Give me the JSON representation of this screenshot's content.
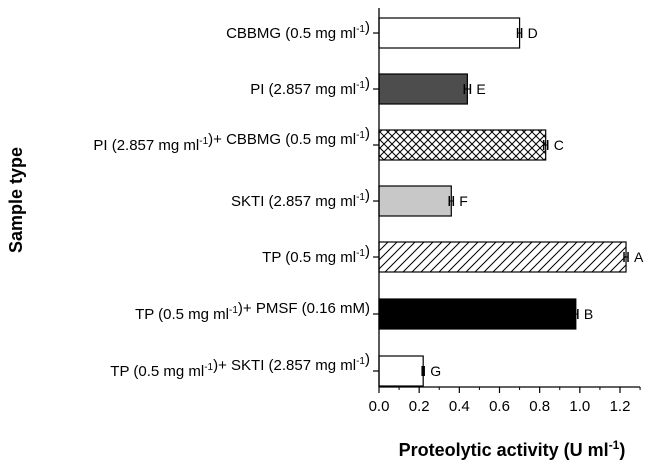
{
  "chart_data": {
    "type": "bar",
    "orientation": "horizontal",
    "xlabel": {
      "text": "Proteolytic activity (U ml",
      "sup": "-1",
      "close": ")"
    },
    "ylabel": "Sample type",
    "xlim": [
      0,
      1.3
    ],
    "xticks": [
      "0.0",
      "0.2",
      "0.4",
      "0.6",
      "0.8",
      "1.0",
      "1.2"
    ],
    "grid": false,
    "categories": [
      {
        "parts": [
          {
            "t": "CBBMG (0.5 mg ml"
          },
          {
            "sup": "-1"
          },
          {
            "t": ")"
          }
        ],
        "value": 0.7,
        "error": 0.01,
        "letter": "D",
        "fill": "white"
      },
      {
        "parts": [
          {
            "t": "PI (2.857 mg ml"
          },
          {
            "sup": "-1"
          },
          {
            "t": ")"
          }
        ],
        "value": 0.44,
        "error": 0.015,
        "letter": "E",
        "fill": "darkgray"
      },
      {
        "parts": [
          {
            "t": "PI (2.857 mg ml"
          },
          {
            "sup": "-1"
          },
          {
            "t": ")+ CBBMG (0.5 mg ml"
          },
          {
            "sup": "-1"
          },
          {
            "t": ")"
          }
        ],
        "value": 0.83,
        "error": 0.01,
        "letter": "C",
        "fill": "crosshatch"
      },
      {
        "parts": [
          {
            "t": "SKTI (2.857 mg ml"
          },
          {
            "sup": "-1"
          },
          {
            "t": ")"
          }
        ],
        "value": 0.36,
        "error": 0.01,
        "letter": "F",
        "fill": "lightgray"
      },
      {
        "parts": [
          {
            "t": "TP (0.5 mg ml"
          },
          {
            "sup": "-1"
          },
          {
            "t": ")"
          }
        ],
        "value": 1.23,
        "error": 0.01,
        "letter": "A",
        "fill": "diagonal"
      },
      {
        "parts": [
          {
            "t": "TP (0.5 mg ml"
          },
          {
            "sup": "-1"
          },
          {
            "t": ")+ PMSF (0.16 mM)"
          }
        ],
        "value": 0.98,
        "error": 0.01,
        "letter": "B",
        "fill": "black"
      },
      {
        "parts": [
          {
            "t": "TP (0.5 mg ml"
          },
          {
            "sup": "-1"
          },
          {
            "t": ")+ SKTI (2.857 mg ml"
          },
          {
            "sup": "-1"
          },
          {
            "t": ")"
          }
        ],
        "value": 0.22,
        "error": 0.005,
        "letter": "G",
        "fill": "white"
      }
    ],
    "colors": {
      "darkgray": "#4d4d4d",
      "lightgray": "#c8c8c8",
      "black": "#000000",
      "outline": "#000000"
    }
  }
}
